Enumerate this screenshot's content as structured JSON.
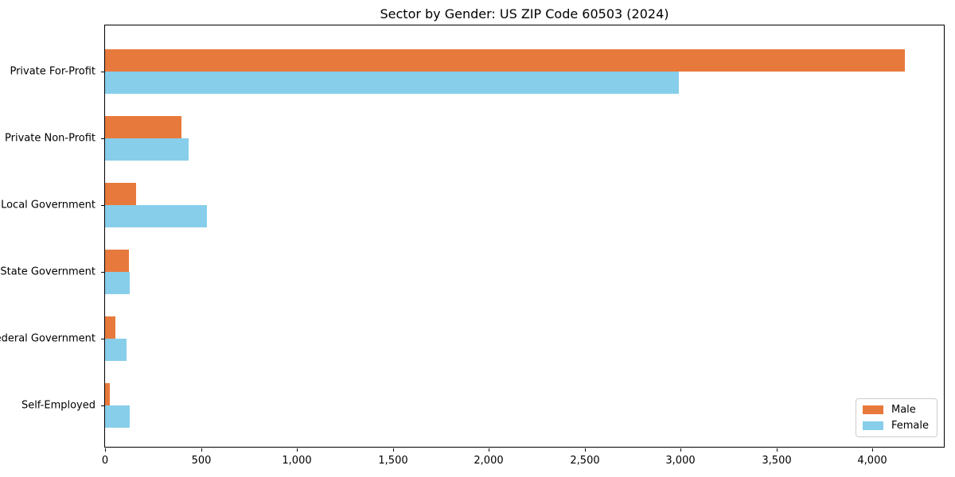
{
  "title": "Sector by Gender: US ZIP Code 60503 (2024)",
  "colors": {
    "male": "#e8793c",
    "female": "#87ceeb",
    "axis": "#000000",
    "legend_border": "#cccccc",
    "background": "#ffffff"
  },
  "chart_data": {
    "type": "bar",
    "orientation": "horizontal",
    "title": "Sector by Gender: US ZIP Code 60503 (2024)",
    "categories": [
      "Private For-Profit",
      "Private Non-Profit",
      "Local Government",
      "State Government",
      "Federal Government",
      "Self-Employed"
    ],
    "series": [
      {
        "name": "Male",
        "color": "#e8793c",
        "values": [
          4170,
          400,
          160,
          125,
          55,
          25
        ]
      },
      {
        "name": "Female",
        "color": "#87ceeb",
        "values": [
          2990,
          435,
          530,
          130,
          110,
          130
        ]
      }
    ],
    "xlabel": "",
    "ylabel": "",
    "xlim": [
      0,
      4380
    ],
    "xticks": [
      0,
      500,
      1000,
      1500,
      2000,
      2500,
      3000,
      3500,
      4000
    ],
    "xtick_labels": [
      "0",
      "500",
      "1,000",
      "1,500",
      "2,000",
      "2,500",
      "3,000",
      "3,500",
      "4,000"
    ],
    "grid": false,
    "legend_position": "lower right",
    "legend_entries": [
      "Male",
      "Female"
    ]
  }
}
